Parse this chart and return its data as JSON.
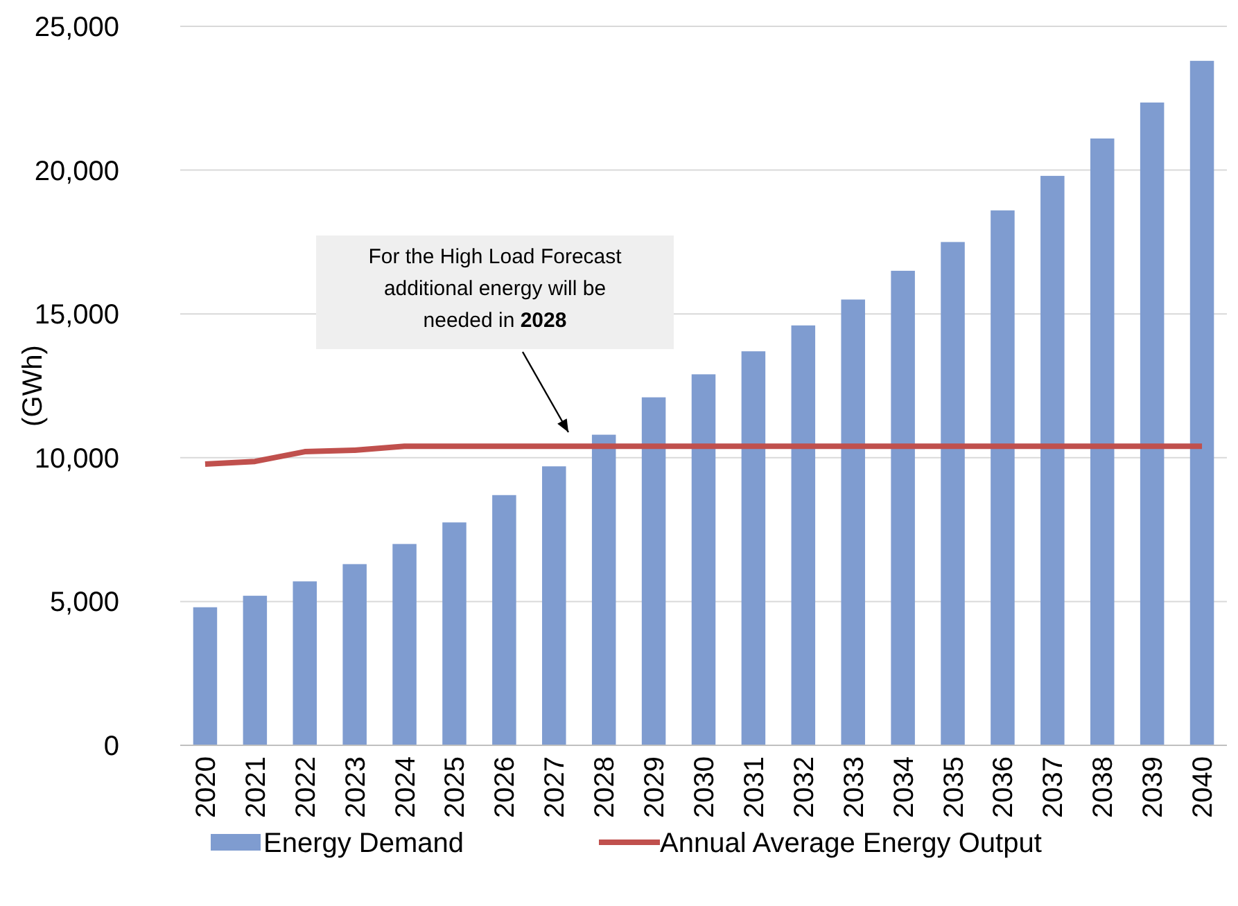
{
  "chart_data": {
    "type": "bar",
    "ylabel": "(GWh)",
    "categories": [
      "2020",
      "2021",
      "2022",
      "2023",
      "2024",
      "2025",
      "2026",
      "2027",
      "2028",
      "2029",
      "2030",
      "2031",
      "2032",
      "2033",
      "2034",
      "2035",
      "2036",
      "2037",
      "2038",
      "2039",
      "2040"
    ],
    "series": [
      {
        "name": "Energy Demand",
        "color": "#7f9cd0",
        "values": [
          4800,
          5200,
          5700,
          6300,
          7000,
          7750,
          8700,
          9700,
          10800,
          12100,
          12900,
          13700,
          14600,
          15500,
          16500,
          17500,
          18600,
          19800,
          21100,
          22350,
          23800
        ]
      },
      {
        "name": "Annual Average Energy Output",
        "type": "line",
        "color": "#c0504d",
        "values": [
          9780,
          9870,
          10210,
          10260,
          10400,
          10400,
          10400,
          10400,
          10400,
          10400,
          10400,
          10400,
          10400,
          10400,
          10400,
          10400,
          10400,
          10400,
          10400,
          10400,
          10400
        ]
      }
    ],
    "ylim": [
      0,
      25000
    ],
    "yticks": [
      {
        "value": 0,
        "label": "0"
      },
      {
        "value": 5000,
        "label": "5,000"
      },
      {
        "value": 10000,
        "label": "10,000"
      },
      {
        "value": 15000,
        "label": "15,000"
      },
      {
        "value": 20000,
        "label": "20,000"
      },
      {
        "value": 25000,
        "label": "25,000"
      }
    ],
    "grid": "y",
    "legend": "bottom",
    "line_style": "solid",
    "marker": "none",
    "annotations": [
      "For the High Load Forecast additional energy will be needed in 2028"
    ]
  }
}
